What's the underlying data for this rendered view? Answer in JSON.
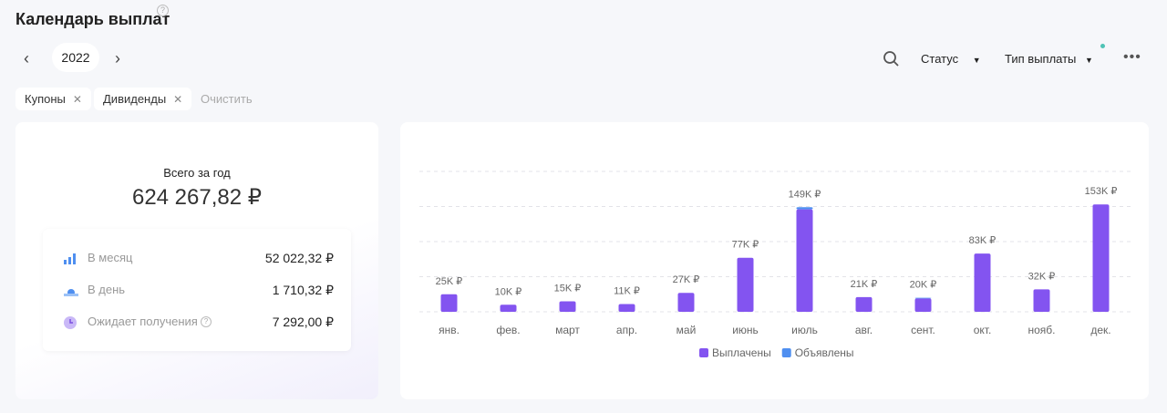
{
  "header": {
    "title": "Календарь выплат",
    "year": "2022",
    "status": "Статус",
    "payment_type": "Тип выплаты"
  },
  "filters": {
    "chips": [
      "Купоны",
      "Дивиденды"
    ],
    "clear": "Очистить"
  },
  "summary": {
    "total_label": "Всего за год",
    "total_value": "624 267,82 ₽",
    "rows": [
      {
        "label": "В месяц",
        "value": "52 022,32 ₽"
      },
      {
        "label": "В день",
        "value": "1 710,32 ₽"
      },
      {
        "label": "Ожидает получения",
        "value": "7 292,00 ₽"
      }
    ]
  },
  "chart_data": {
    "type": "stacked-bar",
    "categories": [
      "янв.",
      "фев.",
      "март",
      "апр.",
      "май",
      "июнь",
      "июль",
      "авг.",
      "сент.",
      "окт.",
      "нояб.",
      "дек."
    ],
    "series": [
      {
        "name": "Выплачены",
        "color": "#8354f0",
        "values": [
          25000,
          10000,
          15000,
          11000,
          27000,
          77000,
          146000,
          21000,
          19000,
          83000,
          32000,
          153000
        ]
      },
      {
        "name": "Объявлены",
        "color": "#4f8ff0",
        "values": [
          0,
          0,
          0,
          0,
          0,
          0,
          3000,
          0,
          1000,
          0,
          0,
          0
        ]
      }
    ],
    "totals": [
      25000,
      10000,
      15000,
      11000,
      27000,
      77000,
      149000,
      21000,
      20000,
      83000,
      32000,
      153000
    ],
    "value_labels": [
      "25K ₽",
      "10K ₽",
      "15K ₽",
      "11K ₽",
      "27K ₽",
      "77K ₽",
      "149K ₽",
      "21K ₽",
      "20K ₽",
      "83K ₽",
      "32K ₽",
      "153K ₽"
    ],
    "ylim": [
      0,
      200000
    ],
    "yticks": [
      0,
      50000,
      100000,
      150000,
      200000
    ],
    "grid": true
  }
}
